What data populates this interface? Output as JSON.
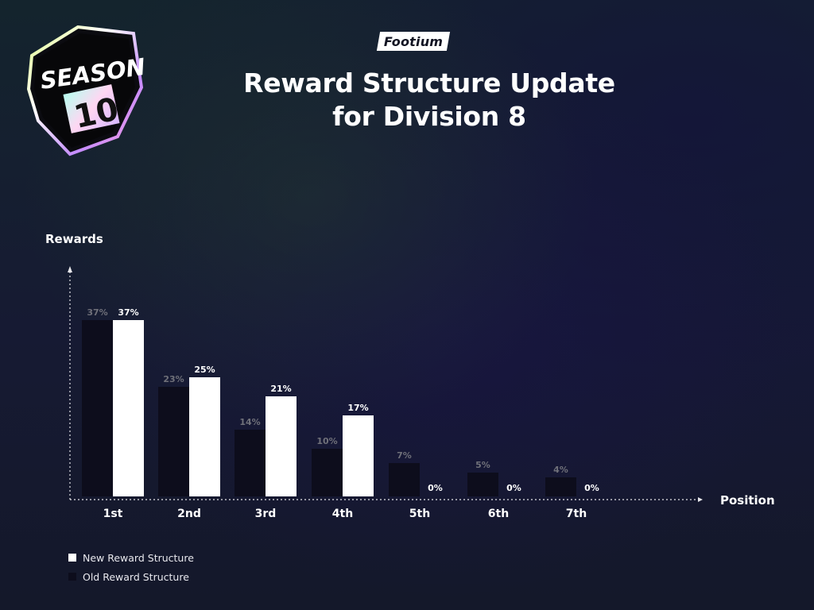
{
  "header": {
    "brand": "Footium",
    "title_line1": "Reward Structure Update",
    "title_line2": "for Division 8"
  },
  "badge": {
    "line1": "SEASON",
    "line2": "10"
  },
  "colors": {
    "new_bar": "#ffffff",
    "old_bar": "#0d0d1c",
    "old_label": "#6f7079",
    "new_label": "#ffffff",
    "axis": "#e6e6ea"
  },
  "chart_data": {
    "type": "bar",
    "title": "",
    "xlabel": "Position",
    "ylabel": "Rewards",
    "categories": [
      "1st",
      "2nd",
      "3rd",
      "4th",
      "5th",
      "6th",
      "7th"
    ],
    "series": [
      {
        "name": "Old Reward Structure",
        "values": [
          37,
          23,
          14,
          10,
          7,
          5,
          4
        ],
        "labels": [
          "37%",
          "23%",
          "14%",
          "10%",
          "7%",
          "5%",
          "4%"
        ]
      },
      {
        "name": "New Reward Structure",
        "values": [
          37,
          25,
          21,
          17,
          0,
          0,
          0
        ],
        "labels": [
          "37%",
          "25%",
          "21%",
          "17%",
          "0%",
          "0%",
          "0%"
        ]
      }
    ],
    "ylim": [
      0,
      47
    ],
    "grid": false,
    "legend_position": "bottom-left"
  },
  "legend": {
    "items": [
      {
        "label": "New Reward Structure",
        "color": "#ffffff"
      },
      {
        "label": "Old Reward Structure",
        "color": "#0d0d1c"
      }
    ]
  }
}
